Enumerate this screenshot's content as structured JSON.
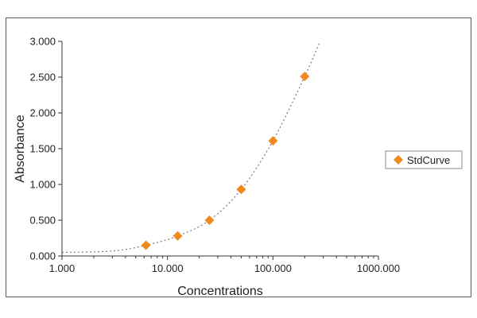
{
  "chart_data": {
    "type": "scatter",
    "xscale": "log",
    "xlabel": "Concentrations",
    "ylabel": "Absorbance",
    "xlim": [
      1,
      1000
    ],
    "ylim": [
      0,
      3
    ],
    "x_ticks": [
      {
        "value": 1,
        "label": "1.000"
      },
      {
        "value": 10,
        "label": "10.000"
      },
      {
        "value": 100,
        "label": "100.000"
      },
      {
        "value": 1000,
        "label": "1000.000"
      }
    ],
    "y_ticks": [
      {
        "value": 0,
        "label": "0.000"
      },
      {
        "value": 0.5,
        "label": "0.500"
      },
      {
        "value": 1,
        "label": "1.000"
      },
      {
        "value": 1.5,
        "label": "1.500"
      },
      {
        "value": 2,
        "label": "2.000"
      },
      {
        "value": 2.5,
        "label": "2.500"
      },
      {
        "value": 3,
        "label": "3.000"
      }
    ],
    "grid": false,
    "legend_position": "right",
    "series": [
      {
        "name": "StdCurve",
        "color": "#f0891e",
        "marker": "diamond",
        "points": [
          {
            "x": 6.25,
            "y": 0.15
          },
          {
            "x": 12.5,
            "y": 0.28
          },
          {
            "x": 25,
            "y": 0.5
          },
          {
            "x": 50,
            "y": 0.93
          },
          {
            "x": 100,
            "y": 1.61
          },
          {
            "x": 200,
            "y": 2.51
          }
        ]
      }
    ],
    "fit_curve": {
      "style": "dotted",
      "color": "#7a7a7a",
      "points": [
        {
          "x": 1,
          "y": 0.05
        },
        {
          "x": 3,
          "y": 0.07
        },
        {
          "x": 6.25,
          "y": 0.15
        },
        {
          "x": 12.5,
          "y": 0.28
        },
        {
          "x": 25,
          "y": 0.5
        },
        {
          "x": 50,
          "y": 0.93
        },
        {
          "x": 100,
          "y": 1.61
        },
        {
          "x": 200,
          "y": 2.51
        },
        {
          "x": 280,
          "y": 3.0
        }
      ]
    }
  }
}
